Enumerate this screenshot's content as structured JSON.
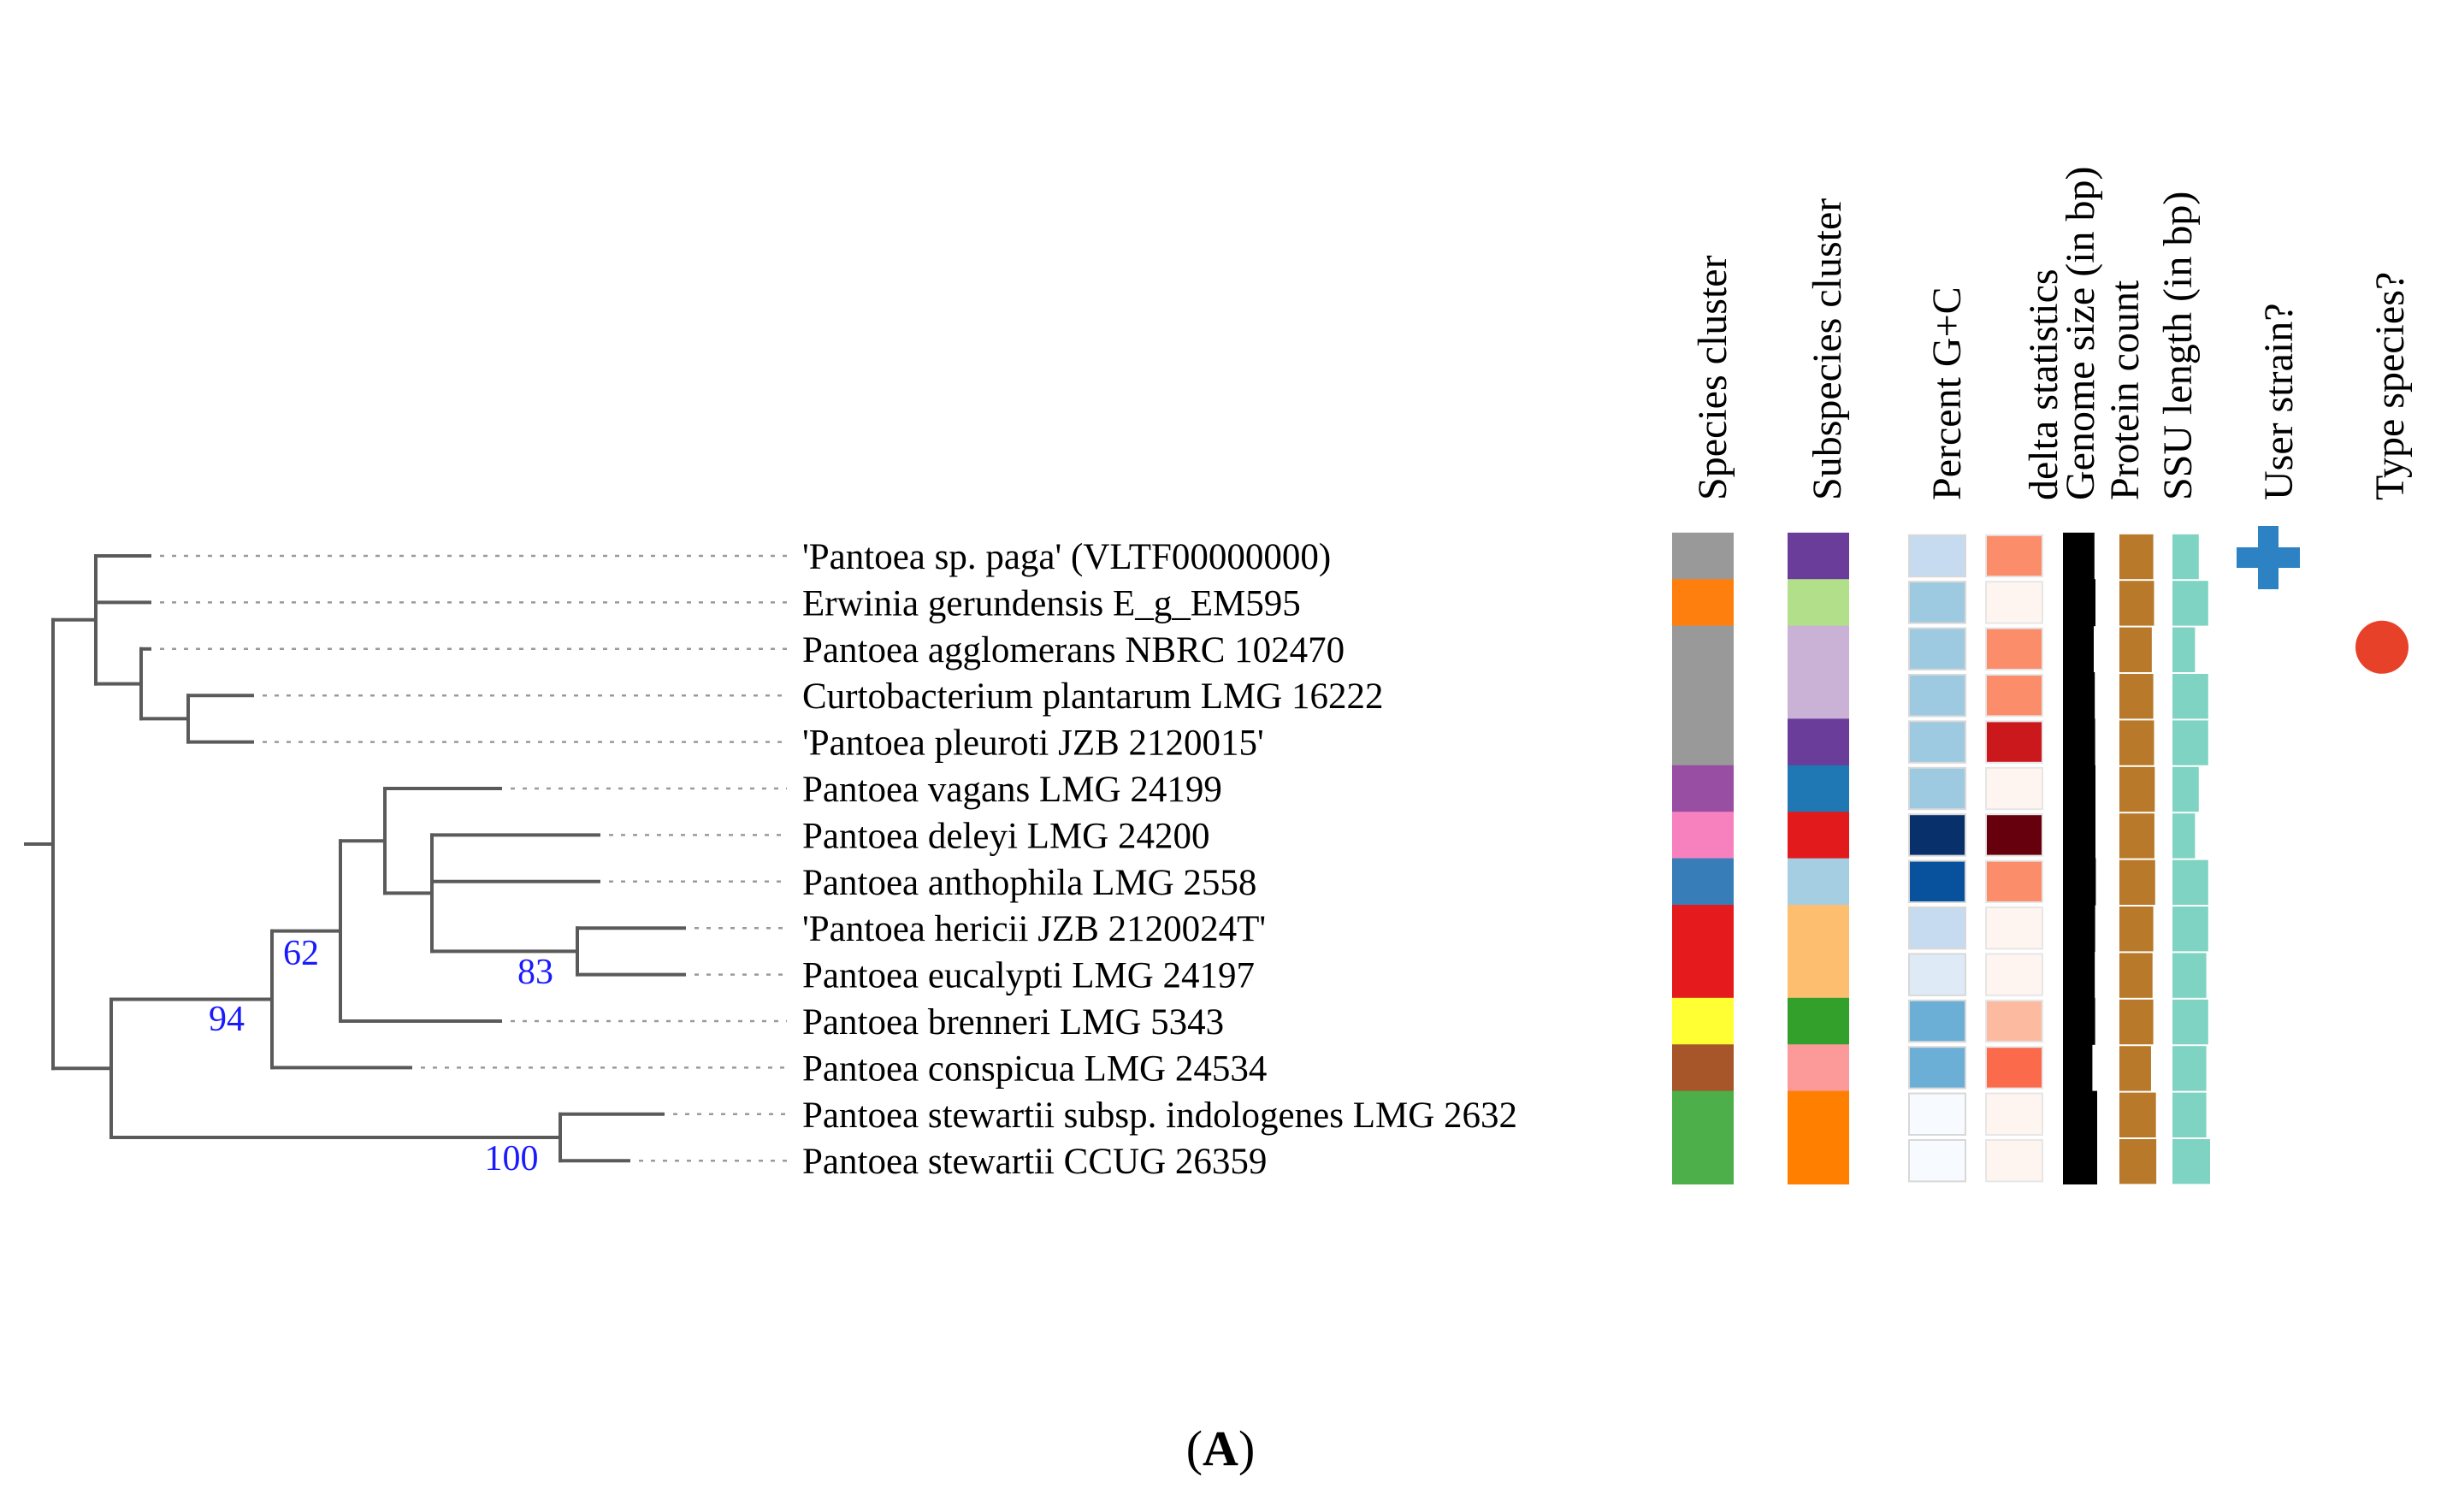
{
  "figure": {
    "panel_caption_open": "(",
    "panel_caption_letter": "A",
    "panel_caption_close": ")"
  },
  "columns": [
    {
      "key": "species_cluster",
      "label": "Species cluster"
    },
    {
      "key": "subspecies_cluster",
      "label": "Subspecies cluster"
    },
    {
      "key": "gc",
      "label": "Percent G+C"
    },
    {
      "key": "delta",
      "label": "delta statistics"
    },
    {
      "key": "genome",
      "label": "Genome size (in bp)"
    },
    {
      "key": "protein",
      "label": "Protein count"
    },
    {
      "key": "ssu",
      "label": "SSU length (in bp)"
    },
    {
      "key": "user",
      "label": "User strain?"
    },
    {
      "key": "type",
      "label": "Type species?"
    }
  ],
  "taxa": [
    {
      "name": "'Pantoea sp. paga' (VLTF00000000)",
      "species": "#999999",
      "subspecies": "#6a3d9a",
      "gc": "#c6dbef",
      "delta": "#fc8d6a",
      "genome": 0.92,
      "protein": 0.9,
      "ssu": 0.7,
      "user": true,
      "type": false
    },
    {
      "name": "Erwinia gerundensis E_g_EM595",
      "species": "#ff7f0e",
      "subspecies": "#b2df8a",
      "gc": "#9ecae1",
      "delta": "#fff5f0",
      "genome": 0.95,
      "protein": 0.92,
      "ssu": 0.95,
      "user": false,
      "type": false
    },
    {
      "name": "Pantoea agglomerans NBRC 102470",
      "species": "#999999",
      "subspecies": "#cab2d6",
      "gc": "#9ecae1",
      "delta": "#fc8d6a",
      "genome": 0.9,
      "protein": 0.86,
      "ssu": 0.6,
      "user": false,
      "type": true
    },
    {
      "name": "Curtobacterium plantarum LMG 16222",
      "species": "#999999",
      "subspecies": "#cab2d6",
      "gc": "#9ecae1",
      "delta": "#fc8d6a",
      "genome": 0.93,
      "protein": 0.9,
      "ssu": 0.95,
      "user": false,
      "type": false
    },
    {
      "name": "'Pantoea pleuroti JZB 2120015'",
      "species": "#999999",
      "subspecies": "#6a3d9a",
      "gc": "#9ecae1",
      "delta": "#cb181d",
      "genome": 0.94,
      "protein": 0.92,
      "ssu": 0.95,
      "user": false,
      "type": false
    },
    {
      "name": "Pantoea vagans LMG 24199",
      "species": "#984ea3",
      "subspecies": "#1f78b4",
      "gc": "#9ecae1",
      "delta": "#fff5f0",
      "genome": 0.95,
      "protein": 0.94,
      "ssu": 0.7,
      "user": false,
      "type": false
    },
    {
      "name": "Pantoea deleyi LMG 24200",
      "species": "#f781bf",
      "subspecies": "#e31a1c",
      "gc": "#08306b",
      "delta": "#67000d",
      "genome": 0.95,
      "protein": 0.93,
      "ssu": 0.6,
      "user": false,
      "type": false
    },
    {
      "name": "Pantoea anthophila LMG 2558",
      "species": "#377eb8",
      "subspecies": "#a6cee3",
      "gc": "#08519c",
      "delta": "#fc8d6a",
      "genome": 0.96,
      "protein": 0.95,
      "ssu": 0.95,
      "user": false,
      "type": false
    },
    {
      "name": "'Pantoea hericii JZB 2120024T'",
      "species": "#e41a1c",
      "subspecies": "#fdbf6f",
      "gc": "#c6dbef",
      "delta": "#fff5f0",
      "genome": 0.94,
      "protein": 0.9,
      "ssu": 0.95,
      "user": false,
      "type": false
    },
    {
      "name": "Pantoea eucalypti LMG 24197",
      "species": "#e41a1c",
      "subspecies": "#fdbf6f",
      "gc": "#deebf7",
      "delta": "#fff5f0",
      "genome": 0.93,
      "protein": 0.88,
      "ssu": 0.9,
      "user": false,
      "type": false
    },
    {
      "name": "Pantoea brenneri LMG 5343",
      "species": "#ffff33",
      "subspecies": "#33a02c",
      "gc": "#6baed6",
      "delta": "#fcbba1",
      "genome": 0.94,
      "protein": 0.9,
      "ssu": 0.95,
      "user": false,
      "type": false
    },
    {
      "name": "Pantoea conspicua LMG 24534",
      "species": "#a65628",
      "subspecies": "#fb9a99",
      "gc": "#6baed6",
      "delta": "#fb6a4a",
      "genome": 0.86,
      "protein": 0.84,
      "ssu": 0.9,
      "user": false,
      "type": false
    },
    {
      "name": "Pantoea stewartii subsp. indologenes LMG 2632",
      "species": "#4daf4a",
      "subspecies": "#ff7f00",
      "gc": "#f7fbff",
      "delta": "#fff5f0",
      "genome": 1.0,
      "protein": 0.97,
      "ssu": 0.9,
      "user": false,
      "type": false
    },
    {
      "name": "Pantoea stewartii CCUG 26359",
      "species": "#4daf4a",
      "subspecies": "#ff7f00",
      "gc": "#f7fbff",
      "delta": "#fff5f0",
      "genome": 1.0,
      "protein": 0.98,
      "ssu": 1.0,
      "user": false,
      "type": false
    }
  ],
  "bootstrap_values": [
    {
      "node": "n62",
      "label": "62"
    },
    {
      "node": "n83",
      "label": "83"
    },
    {
      "node": "n94",
      "label": "94"
    },
    {
      "node": "n100",
      "label": "100"
    }
  ],
  "colors": {
    "tree_line": "#5a5a5a",
    "bootstrap": "#1a1aff",
    "genome_bar": "#000000",
    "protein_bar": "#b8792a",
    "ssu_bar": "#7fd3c2",
    "user_marker": "#2d82c4",
    "type_marker": "#e8412a"
  }
}
